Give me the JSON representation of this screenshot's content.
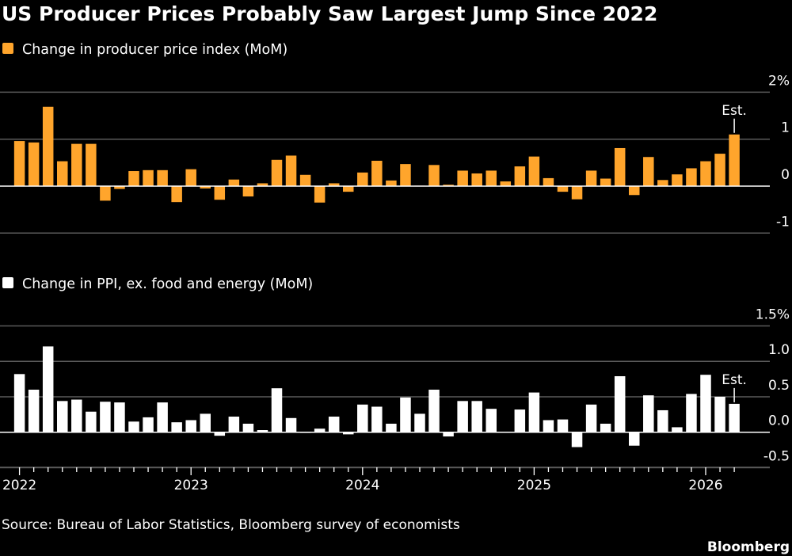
{
  "chart_data": [
    {
      "type": "bar",
      "title": "US Producer Prices Probably Saw Largest Jump Since 2022",
      "series": [
        {
          "name": "Change in producer price index (MoM)",
          "values": [
            0.96,
            0.93,
            1.69,
            0.53,
            0.9,
            0.9,
            -0.31,
            -0.06,
            0.32,
            0.34,
            0.34,
            -0.34,
            0.36,
            -0.05,
            -0.29,
            0.14,
            -0.22,
            0.06,
            0.56,
            0.65,
            0.24,
            -0.35,
            0.06,
            -0.12,
            0.29,
            0.54,
            0.12,
            0.47,
            0.01,
            0.45,
            0.03,
            0.33,
            0.27,
            0.33,
            0.1,
            0.42,
            0.63,
            0.17,
            -0.12,
            -0.28,
            0.33,
            0.16,
            0.81,
            -0.19,
            0.62,
            0.13,
            0.25,
            0.38,
            0.53,
            0.69,
            1.1
          ]
        }
      ],
      "color": "#FFA52C",
      "x_start": "2022-01",
      "x_end": "2026-03",
      "frequency": "monthly",
      "ylim": [
        -1,
        2
      ],
      "yticks": [
        "2%",
        "1",
        "0",
        "-1"
      ],
      "ytick_values": [
        2,
        1,
        0,
        -1
      ],
      "annotation": "Est.",
      "grid": true
    },
    {
      "type": "bar",
      "series": [
        {
          "name": "Change in PPI, ex. food and energy (MoM)",
          "values": [
            0.82,
            0.6,
            1.21,
            0.44,
            0.46,
            0.29,
            0.43,
            0.42,
            0.15,
            0.21,
            0.42,
            0.14,
            0.17,
            0.26,
            -0.05,
            0.22,
            0.12,
            0.03,
            0.62,
            0.2,
            -0.01,
            0.05,
            0.22,
            -0.03,
            0.39,
            0.36,
            0.12,
            0.49,
            0.26,
            0.6,
            -0.06,
            0.44,
            0.44,
            0.33,
            0.0,
            0.32,
            0.56,
            0.17,
            0.18,
            -0.21,
            0.39,
            0.12,
            0.79,
            -0.19,
            0.52,
            0.31,
            0.07,
            0.54,
            0.81,
            0.5,
            0.4
          ]
        }
      ],
      "color": "#FFFFFF",
      "x_start": "2022-01",
      "x_end": "2026-03",
      "frequency": "monthly",
      "ylim": [
        -0.5,
        1.5
      ],
      "yticks": [
        "1.5%",
        "1.0",
        "0.5",
        "0.0",
        "-0.5"
      ],
      "ytick_values": [
        1.5,
        1.0,
        0.5,
        0.0,
        -0.5
      ],
      "xtick_labels": [
        "2022",
        "2023",
        "2024",
        "2025",
        "2026"
      ],
      "annotation": "Est.",
      "grid": true
    }
  ],
  "source": "Source: Bureau of Labor Statistics, Bloomberg survey of economists",
  "brand": "Bloomberg"
}
